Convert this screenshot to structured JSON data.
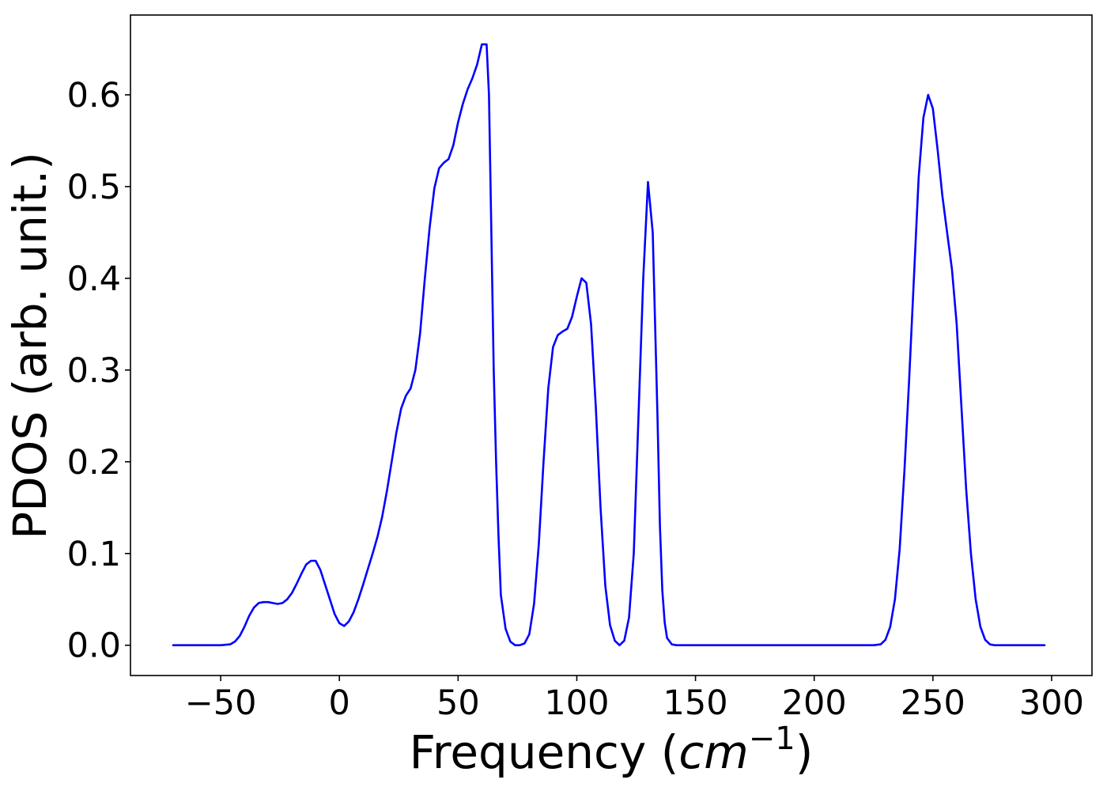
{
  "chart_data": {
    "type": "line",
    "title": "",
    "xlabel_prefix": "Frequency (",
    "xlabel_math": "cm",
    "xlabel_sup": "−1",
    "xlabel_suffix": ")",
    "ylabel": "PDOS (arb. unit.)",
    "xlim": [
      -88,
      317
    ],
    "ylim": [
      -0.033,
      0.687
    ],
    "x_ticks": [
      -50,
      0,
      50,
      100,
      150,
      200,
      250,
      300
    ],
    "x_tick_labels": [
      "−50",
      "0",
      "50",
      "100",
      "150",
      "200",
      "250",
      "300"
    ],
    "y_ticks": [
      0.0,
      0.1,
      0.2,
      0.3,
      0.4,
      0.5,
      0.6
    ],
    "y_tick_labels": [
      "0.0",
      "0.1",
      "0.2",
      "0.3",
      "0.4",
      "0.5",
      "0.6"
    ],
    "grid": false,
    "legend": null,
    "series": [
      {
        "color": "#0000ff",
        "points": [
          [
            -70,
            0.0
          ],
          [
            -60,
            0.0
          ],
          [
            -50,
            0.0
          ],
          [
            -46,
            0.001
          ],
          [
            -44,
            0.004
          ],
          [
            -42,
            0.01
          ],
          [
            -40,
            0.02
          ],
          [
            -38,
            0.032
          ],
          [
            -36,
            0.041
          ],
          [
            -34,
            0.046
          ],
          [
            -32,
            0.047
          ],
          [
            -30,
            0.047
          ],
          [
            -28,
            0.046
          ],
          [
            -26,
            0.045
          ],
          [
            -24,
            0.046
          ],
          [
            -22,
            0.05
          ],
          [
            -20,
            0.057
          ],
          [
            -18,
            0.067
          ],
          [
            -16,
            0.078
          ],
          [
            -14,
            0.088
          ],
          [
            -12,
            0.092
          ],
          [
            -10,
            0.092
          ],
          [
            -8,
            0.082
          ],
          [
            -6,
            0.066
          ],
          [
            -4,
            0.05
          ],
          [
            -2,
            0.034
          ],
          [
            0,
            0.024
          ],
          [
            2,
            0.021
          ],
          [
            4,
            0.026
          ],
          [
            6,
            0.036
          ],
          [
            8,
            0.05
          ],
          [
            10,
            0.066
          ],
          [
            12,
            0.083
          ],
          [
            14,
            0.1
          ],
          [
            16,
            0.118
          ],
          [
            18,
            0.14
          ],
          [
            20,
            0.168
          ],
          [
            22,
            0.2
          ],
          [
            24,
            0.232
          ],
          [
            26,
            0.258
          ],
          [
            28,
            0.272
          ],
          [
            30,
            0.28
          ],
          [
            32,
            0.3
          ],
          [
            34,
            0.34
          ],
          [
            36,
            0.4
          ],
          [
            38,
            0.455
          ],
          [
            40,
            0.498
          ],
          [
            42,
            0.52
          ],
          [
            44,
            0.526
          ],
          [
            46,
            0.53
          ],
          [
            48,
            0.545
          ],
          [
            50,
            0.57
          ],
          [
            52,
            0.59
          ],
          [
            54,
            0.606
          ],
          [
            56,
            0.618
          ],
          [
            58,
            0.633
          ],
          [
            60,
            0.655
          ],
          [
            62,
            0.655
          ],
          [
            63,
            0.6
          ],
          [
            64,
            0.45
          ],
          [
            65,
            0.3
          ],
          [
            66,
            0.2
          ],
          [
            67,
            0.12
          ],
          [
            68,
            0.055
          ],
          [
            70,
            0.018
          ],
          [
            72,
            0.004
          ],
          [
            74,
            0.0
          ],
          [
            76,
            0.0
          ],
          [
            78,
            0.002
          ],
          [
            80,
            0.012
          ],
          [
            82,
            0.045
          ],
          [
            84,
            0.11
          ],
          [
            86,
            0.2
          ],
          [
            88,
            0.28
          ],
          [
            90,
            0.325
          ],
          [
            92,
            0.338
          ],
          [
            94,
            0.342
          ],
          [
            96,
            0.345
          ],
          [
            98,
            0.358
          ],
          [
            100,
            0.38
          ],
          [
            102,
            0.4
          ],
          [
            104,
            0.395
          ],
          [
            106,
            0.35
          ],
          [
            108,
            0.26
          ],
          [
            110,
            0.15
          ],
          [
            112,
            0.065
          ],
          [
            114,
            0.022
          ],
          [
            116,
            0.005
          ],
          [
            118,
            0.0
          ],
          [
            120,
            0.005
          ],
          [
            122,
            0.03
          ],
          [
            124,
            0.1
          ],
          [
            126,
            0.25
          ],
          [
            128,
            0.4
          ],
          [
            130,
            0.505
          ],
          [
            132,
            0.45
          ],
          [
            133,
            0.35
          ],
          [
            134,
            0.25
          ],
          [
            135,
            0.13
          ],
          [
            136,
            0.06
          ],
          [
            137,
            0.025
          ],
          [
            138,
            0.008
          ],
          [
            140,
            0.001
          ],
          [
            142,
            0.0
          ],
          [
            160,
            0.0
          ],
          [
            200,
            0.0
          ],
          [
            225,
            0.0
          ],
          [
            228,
            0.001
          ],
          [
            230,
            0.006
          ],
          [
            232,
            0.02
          ],
          [
            234,
            0.05
          ],
          [
            236,
            0.105
          ],
          [
            238,
            0.19
          ],
          [
            240,
            0.29
          ],
          [
            242,
            0.4
          ],
          [
            244,
            0.51
          ],
          [
            246,
            0.575
          ],
          [
            248,
            0.6
          ],
          [
            250,
            0.585
          ],
          [
            252,
            0.54
          ],
          [
            254,
            0.49
          ],
          [
            256,
            0.45
          ],
          [
            258,
            0.41
          ],
          [
            260,
            0.35
          ],
          [
            262,
            0.26
          ],
          [
            264,
            0.17
          ],
          [
            266,
            0.1
          ],
          [
            268,
            0.05
          ],
          [
            270,
            0.02
          ],
          [
            272,
            0.006
          ],
          [
            274,
            0.001
          ],
          [
            276,
            0.0
          ],
          [
            280,
            0.0
          ],
          [
            290,
            0.0
          ],
          [
            297,
            0.0
          ]
        ]
      }
    ]
  }
}
